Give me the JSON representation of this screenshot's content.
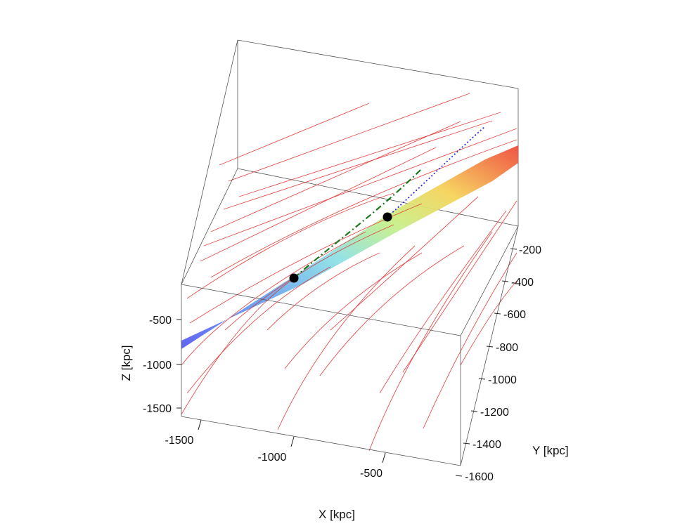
{
  "chart_data": {
    "type": "scatter",
    "title": "",
    "projection": "3d",
    "xlabel": "X [kpc]",
    "ylabel": "Y [kpc]",
    "zlabel": "Z [kpc]",
    "x_ticks": [
      "-1500",
      "-1000",
      "-500"
    ],
    "y_ticks": [
      "-200",
      "-400",
      "-600",
      "-800",
      "-1000",
      "-1200",
      "-1400",
      "-1600"
    ],
    "z_ticks": [
      "-500",
      "-1000",
      "-1500"
    ],
    "surface_colormap": "rainbow",
    "colors": {
      "trajectories": "#e03030",
      "markers": "#000000",
      "green_path": "#1a7a1a",
      "blue_path": "#2a2adf",
      "box": "#555555"
    },
    "series": [
      {
        "type": "marker",
        "values": [
          [
            -980,
            -1010,
            -550
          ],
          [
            -450,
            -800,
            -60
          ]
        ]
      },
      {
        "type": "line",
        "line_style": "dash-dot"
      },
      {
        "type": "line",
        "line_style": "dotted"
      },
      {
        "type": "line"
      }
    ]
  }
}
